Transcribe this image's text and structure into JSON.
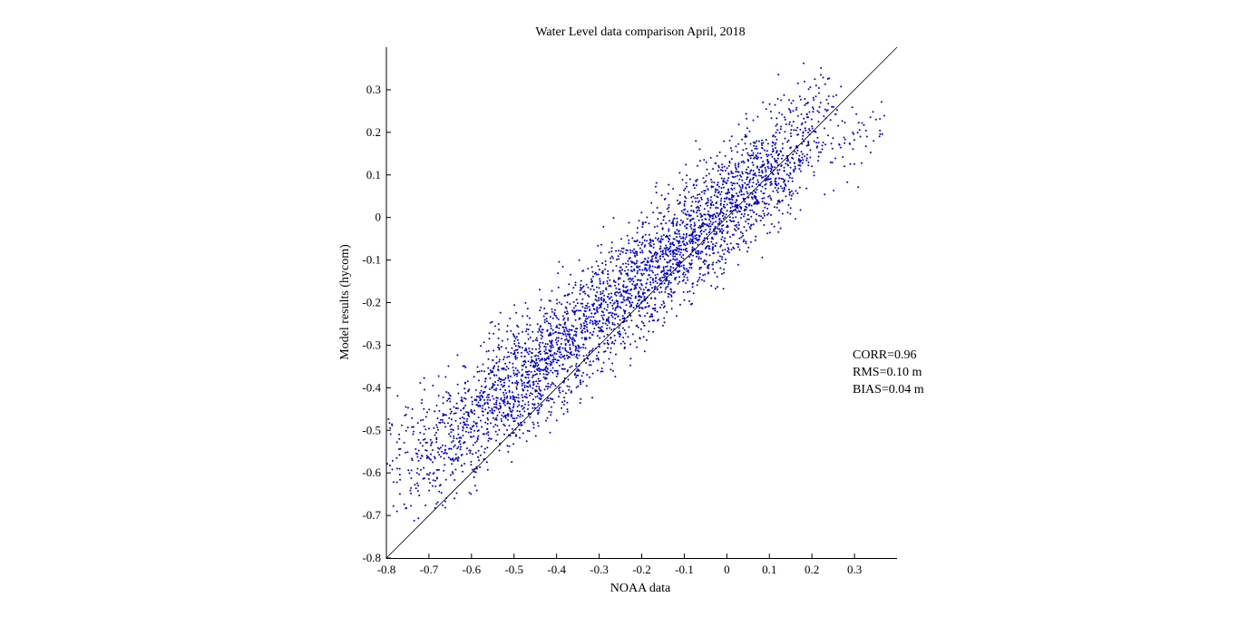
{
  "chart_data": {
    "type": "scatter",
    "title": "Water Level data comparison April, 2018",
    "xlabel": "NOAA data",
    "ylabel": "Model results (hycom)",
    "xlim": [
      -0.8,
      0.4
    ],
    "ylim": [
      -0.8,
      0.4
    ],
    "x_ticks": [
      "-0.8",
      "-0.7",
      "-0.6",
      "-0.5",
      "-0.4",
      "-0.3",
      "-0.2",
      "-0.1",
      "0",
      "0.1",
      "0.2",
      "0.3"
    ],
    "y_ticks": [
      "-0.8",
      "-0.7",
      "-0.6",
      "-0.5",
      "-0.4",
      "-0.3",
      "-0.2",
      "-0.1",
      "0",
      "0.1",
      "0.2",
      "0.3"
    ],
    "reference_line": {
      "x": [
        -0.8,
        0.4
      ],
      "y": [
        -0.8,
        0.4
      ],
      "color": "#000000"
    },
    "stats": [
      "CORR=0.96",
      "RMS=0.10 m",
      "BIAS=0.04 m"
    ],
    "marker_color": "#0000cc",
    "grid": false,
    "series": [
      {
        "x": [
          -0.79,
          -0.77,
          -0.75,
          -0.73,
          -0.71,
          -0.69,
          -0.67,
          -0.65,
          -0.63,
          -0.61,
          -0.59,
          -0.57,
          -0.55,
          -0.53,
          -0.51,
          -0.49,
          -0.47,
          -0.45,
          -0.43,
          -0.41,
          -0.39,
          -0.37,
          -0.35,
          -0.33,
          -0.31,
          -0.29,
          -0.27,
          -0.25,
          -0.23,
          -0.21,
          -0.19,
          -0.17,
          -0.15,
          -0.13,
          -0.11,
          -0.09,
          -0.07,
          -0.05,
          -0.03,
          -0.01,
          0.01,
          0.03,
          0.05,
          0.07,
          0.09,
          0.11,
          0.13,
          0.15,
          0.17,
          0.19,
          0.21,
          0.23,
          0.25,
          0.27,
          0.29,
          0.31,
          0.33,
          0.35,
          0.37
        ],
        "y": [
          -0.56,
          -0.58,
          -0.57,
          -0.55,
          -0.53,
          -0.56,
          -0.52,
          -0.5,
          -0.51,
          -0.47,
          -0.49,
          -0.45,
          -0.42,
          -0.4,
          -0.41,
          -0.38,
          -0.36,
          -0.37,
          -0.33,
          -0.32,
          -0.31,
          -0.28,
          -0.27,
          -0.26,
          -0.24,
          -0.22,
          -0.2,
          -0.19,
          -0.17,
          -0.15,
          -0.13,
          -0.12,
          -0.1,
          -0.08,
          -0.07,
          -0.05,
          -0.03,
          -0.02,
          0.0,
          0.02,
          0.04,
          0.05,
          0.07,
          0.09,
          0.1,
          0.12,
          0.13,
          0.15,
          0.17,
          0.19,
          0.2,
          0.22,
          0.24,
          0.2,
          0.18,
          0.17,
          0.19,
          0.21,
          0.2
        ],
        "spread": [
          0.07,
          0.07,
          0.07,
          0.07,
          0.07,
          0.07,
          0.07,
          0.07,
          0.07,
          0.07,
          0.07,
          0.07,
          0.07,
          0.07,
          0.07,
          0.07,
          0.07,
          0.07,
          0.07,
          0.07,
          0.07,
          0.07,
          0.07,
          0.07,
          0.07,
          0.07,
          0.07,
          0.07,
          0.07,
          0.07,
          0.07,
          0.07,
          0.07,
          0.07,
          0.07,
          0.07,
          0.07,
          0.07,
          0.07,
          0.07,
          0.07,
          0.07,
          0.07,
          0.07,
          0.07,
          0.07,
          0.07,
          0.07,
          0.07,
          0.07,
          0.07,
          0.07,
          0.07,
          0.05,
          0.05,
          0.05,
          0.04,
          0.04,
          0.04
        ],
        "density": [
          12,
          16,
          22,
          28,
          34,
          40,
          44,
          48,
          52,
          56,
          60,
          66,
          72,
          78,
          82,
          86,
          88,
          90,
          90,
          88,
          86,
          82,
          80,
          78,
          78,
          80,
          82,
          84,
          86,
          88,
          90,
          92,
          94,
          96,
          96,
          96,
          94,
          92,
          90,
          88,
          86,
          84,
          82,
          80,
          76,
          72,
          66,
          58,
          48,
          40,
          30,
          22,
          16,
          12,
          10,
          8,
          6,
          6,
          4
        ]
      }
    ]
  }
}
